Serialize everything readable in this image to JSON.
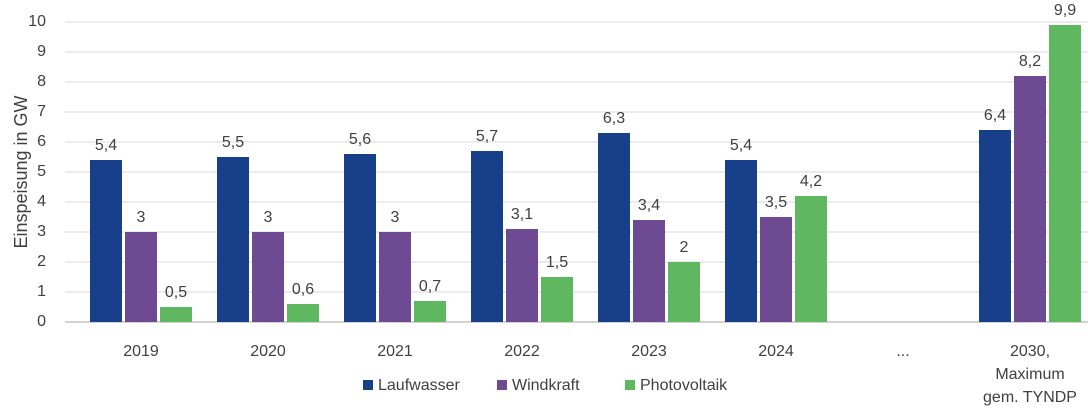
{
  "chart_data": {
    "type": "bar",
    "y_label": "Einspeisung in GW",
    "categories": [
      "2019",
      "2020",
      "2021",
      "2022",
      "2023",
      "2024",
      "...",
      "2030,\nMaximum\ngem. TYNDP"
    ],
    "series": [
      {
        "name": "Laufwasser",
        "color": "#173f8a",
        "values": [
          5.4,
          5.5,
          5.6,
          5.7,
          6.3,
          5.4,
          null,
          6.4
        ],
        "value_labels": [
          "5,4",
          "5,5",
          "5,6",
          "5,7",
          "6,3",
          "5,4",
          null,
          "6,4"
        ]
      },
      {
        "name": "Windkraft",
        "color": "#6e4a93",
        "values": [
          3,
          3,
          3,
          3.1,
          3.4,
          3.5,
          null,
          8.2
        ],
        "value_labels": [
          "3",
          "3",
          "3",
          "3,1",
          "3,4",
          "3,5",
          null,
          "8,2"
        ]
      },
      {
        "name": "Photovoltaik",
        "color": "#5fb760",
        "values": [
          0.5,
          0.6,
          0.7,
          1.5,
          2,
          4.2,
          null,
          9.9
        ],
        "value_labels": [
          "0,5",
          "0,6",
          "0,7",
          "1,5",
          "2",
          "4,2",
          null,
          "9,9"
        ]
      }
    ],
    "ylim": [
      0,
      10
    ],
    "yticks": [
      0,
      1,
      2,
      3,
      4,
      5,
      6,
      7,
      8,
      9,
      10
    ],
    "grid": true
  }
}
